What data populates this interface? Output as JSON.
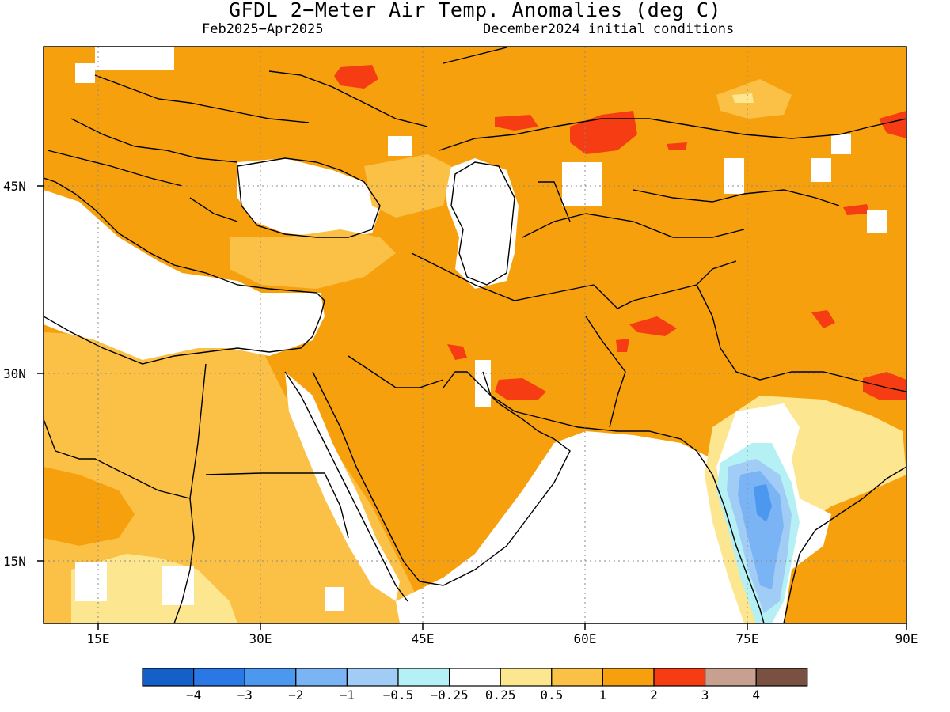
{
  "title": "GFDL 2−Meter Air Temp. Anomalies (deg C)",
  "period": "Feb2025−Apr2025",
  "init": "December2024 initial conditions",
  "lat_labels": [
    "45N",
    "30N",
    "15N"
  ],
  "lon_labels": [
    "15E",
    "30E",
    "45E",
    "60E",
    "75E",
    "90E"
  ],
  "colorbar": {
    "colors": [
      "#1560c8",
      "#2a78e6",
      "#4c98ef",
      "#7ab4f4",
      "#a0ccf6",
      "#b4f0f4",
      "#ffffff",
      "#fde690",
      "#fbc046",
      "#f7a00e",
      "#f53c12",
      "#c8a090",
      "#7a5040"
    ],
    "labels": [
      "−4",
      "−3",
      "−2",
      "−1",
      "−0.5",
      "−0.25",
      "0.25",
      "0.5",
      "1",
      "2",
      "3",
      "4"
    ]
  },
  "palette": {
    "neutral": "#ffffff",
    "warm1": "#fde690",
    "warm2": "#fbc046",
    "warm3": "#f7a00e",
    "warm4": "#f53c12",
    "cool1": "#b4f0f4",
    "cool2": "#a0ccf6",
    "cool3": "#7ab4f4",
    "cool4": "#4c98ef"
  }
}
